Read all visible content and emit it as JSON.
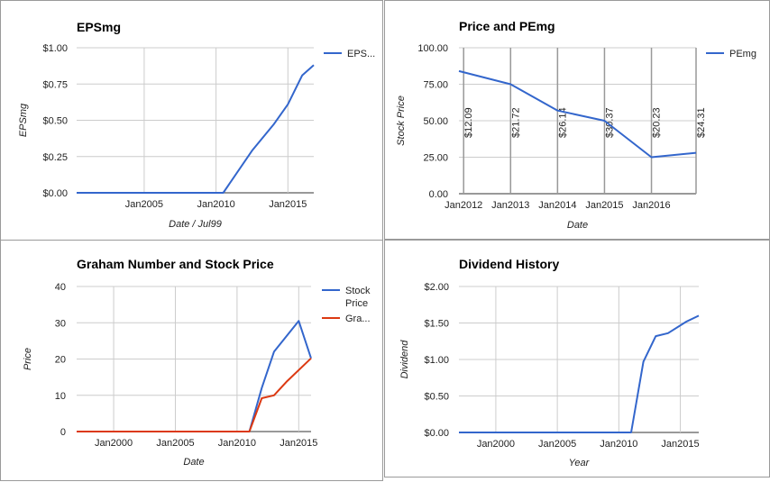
{
  "colors": {
    "series_blue": "#3366cc",
    "series_red": "#dc3912",
    "grid": "#cccccc",
    "baseline": "#333333"
  },
  "chart_data": [
    {
      "type": "line",
      "title": "EPSmg",
      "xlabel": "Date / Jul99",
      "ylabel": "EPSmg",
      "xlim": [
        2000.3,
        2016.8
      ],
      "ylim": [
        0,
        1
      ],
      "x_ticks": [
        {
          "v": 2005,
          "label": "Jan2005"
        },
        {
          "v": 2010,
          "label": "Jan2010"
        },
        {
          "v": 2015,
          "label": "Jan2015"
        }
      ],
      "y_ticks": [
        {
          "v": 0,
          "label": "$0.00"
        },
        {
          "v": 0.25,
          "label": "$0.25"
        },
        {
          "v": 0.5,
          "label": "$0.50"
        },
        {
          "v": 0.75,
          "label": "$0.75"
        },
        {
          "v": 1,
          "label": "$1.00"
        }
      ],
      "legend_position": "right",
      "series": [
        {
          "name": "EPS...",
          "color": "#3366cc",
          "x": [
            2000.3,
            2005,
            2010,
            2010.5,
            2012.5,
            2014,
            2015,
            2016,
            2016.8
          ],
          "y": [
            0,
            0,
            0,
            0,
            0.29,
            0.47,
            0.61,
            0.81,
            0.88
          ]
        }
      ]
    },
    {
      "type": "line",
      "title": "Price and PEmg",
      "xlabel": "Date",
      "ylabel": "Stock Price",
      "xlim": [
        2011.9,
        2016.95
      ],
      "ylim": [
        0,
        100
      ],
      "x_ticks": [
        {
          "v": 2012,
          "label": "Jan2012"
        },
        {
          "v": 2013,
          "label": "Jan2013"
        },
        {
          "v": 2014,
          "label": "Jan2014"
        },
        {
          "v": 2015,
          "label": "Jan2015"
        },
        {
          "v": 2016,
          "label": "Jan2016"
        }
      ],
      "y_ticks": [
        {
          "v": 0,
          "label": "0.00"
        },
        {
          "v": 25,
          "label": "25.00"
        },
        {
          "v": 50,
          "label": "50.00"
        },
        {
          "v": 75,
          "label": "75.00"
        },
        {
          "v": 100,
          "label": "100.00"
        }
      ],
      "legend_position": "right",
      "series": [
        {
          "name": "PEmg",
          "color": "#3366cc",
          "x": [
            2011.9,
            2013,
            2014,
            2015,
            2016,
            2016.95
          ],
          "y": [
            84,
            75,
            57,
            50,
            25,
            28
          ]
        }
      ],
      "annotations": [
        {
          "x": 2012,
          "label": "$12.09"
        },
        {
          "x": 2013,
          "label": "$21.72"
        },
        {
          "x": 2014,
          "label": "$26.14"
        },
        {
          "x": 2015,
          "label": "$30.37"
        },
        {
          "x": 2016,
          "label": "$20.23"
        },
        {
          "x": 2016.95,
          "label": "$24.31"
        }
      ]
    },
    {
      "type": "line",
      "title": "Graham Number and Stock Price",
      "xlabel": "Date",
      "ylabel": "Price",
      "xlim": [
        1997,
        2016
      ],
      "ylim": [
        0,
        40
      ],
      "x_ticks": [
        {
          "v": 2000,
          "label": "Jan2000"
        },
        {
          "v": 2005,
          "label": "Jan2005"
        },
        {
          "v": 2010,
          "label": "Jan2010"
        },
        {
          "v": 2015,
          "label": "Jan2015"
        }
      ],
      "y_ticks": [
        {
          "v": 0,
          "label": "0"
        },
        {
          "v": 10,
          "label": "10"
        },
        {
          "v": 20,
          "label": "20"
        },
        {
          "v": 30,
          "label": "30"
        },
        {
          "v": 40,
          "label": "40"
        }
      ],
      "legend_position": "right",
      "series": [
        {
          "name": "Stock Price",
          "color": "#3366cc",
          "x": [
            1997,
            2011,
            2012,
            2013,
            2015,
            2016
          ],
          "y": [
            0,
            0,
            12,
            22,
            30.5,
            20.2
          ]
        },
        {
          "name": "Gra...",
          "color": "#dc3912",
          "x": [
            1997,
            2011,
            2012,
            2013,
            2014,
            2016
          ],
          "y": [
            0,
            0,
            9.2,
            10,
            13.7,
            20.2
          ]
        }
      ]
    },
    {
      "type": "line",
      "title": "Dividend History",
      "xlabel": "Year",
      "ylabel": "Dividend",
      "xlim": [
        1997,
        2016.5
      ],
      "ylim": [
        0,
        2
      ],
      "x_ticks": [
        {
          "v": 2000,
          "label": "Jan2000"
        },
        {
          "v": 2005,
          "label": "Jan2005"
        },
        {
          "v": 2010,
          "label": "Jan2010"
        },
        {
          "v": 2015,
          "label": "Jan2015"
        }
      ],
      "y_ticks": [
        {
          "v": 0,
          "label": "$0.00"
        },
        {
          "v": 0.5,
          "label": "$0.50"
        },
        {
          "v": 1,
          "label": "$1.00"
        },
        {
          "v": 1.5,
          "label": "$1.50"
        },
        {
          "v": 2,
          "label": "$2.00"
        }
      ],
      "series": [
        {
          "name": "",
          "color": "#3366cc",
          "x": [
            1997,
            2011,
            2012,
            2013,
            2014,
            2015.5,
            2016.5
          ],
          "y": [
            0,
            0,
            0.97,
            1.32,
            1.36,
            1.52,
            1.6
          ]
        }
      ]
    }
  ]
}
